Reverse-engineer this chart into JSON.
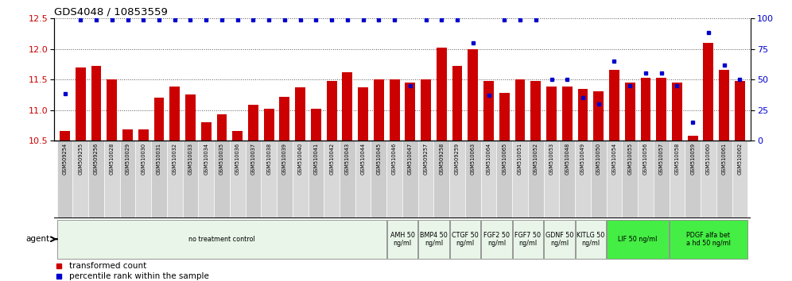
{
  "title": "GDS4048 / 10853559",
  "samples": [
    "GSM509254",
    "GSM509255",
    "GSM509256",
    "GSM510028",
    "GSM510029",
    "GSM510030",
    "GSM510031",
    "GSM510032",
    "GSM510033",
    "GSM510034",
    "GSM510035",
    "GSM510036",
    "GSM510037",
    "GSM510038",
    "GSM510039",
    "GSM510040",
    "GSM510041",
    "GSM510042",
    "GSM510043",
    "GSM510044",
    "GSM510045",
    "GSM510046",
    "GSM510047",
    "GSM509257",
    "GSM509258",
    "GSM509259",
    "GSM510063",
    "GSM510064",
    "GSM510065",
    "GSM510051",
    "GSM510052",
    "GSM510053",
    "GSM510048",
    "GSM510049",
    "GSM510050",
    "GSM510054",
    "GSM510055",
    "GSM510056",
    "GSM510057",
    "GSM510058",
    "GSM510059",
    "GSM510060",
    "GSM510061",
    "GSM510062"
  ],
  "bar_values": [
    10.65,
    11.7,
    11.72,
    11.5,
    10.68,
    10.68,
    11.2,
    11.38,
    11.25,
    10.8,
    10.93,
    10.65,
    11.08,
    11.02,
    11.22,
    11.37,
    11.02,
    11.47,
    11.62,
    11.37,
    11.5,
    11.5,
    11.45,
    11.5,
    12.02,
    11.72,
    12.0,
    11.48,
    11.28,
    11.5,
    11.47,
    11.38,
    11.38,
    11.35,
    11.3,
    11.65,
    11.45,
    11.52,
    11.53,
    11.45,
    10.58,
    12.1,
    11.65,
    11.48
  ],
  "percentile_values": [
    38,
    99,
    99,
    99,
    99,
    99,
    99,
    99,
    99,
    99,
    99,
    99,
    99,
    99,
    99,
    99,
    99,
    99,
    99,
    99,
    99,
    99,
    45,
    99,
    99,
    99,
    80,
    37,
    99,
    99,
    99,
    50,
    50,
    35,
    30,
    65,
    45,
    55,
    55,
    45,
    15,
    88,
    62,
    50
  ],
  "agent_groups": [
    {
      "label": "no treatment control",
      "start": 0,
      "end": 20,
      "color": "#e8f5e8",
      "border": "#888888"
    },
    {
      "label": "AMH 50\nng/ml",
      "start": 21,
      "end": 22,
      "color": "#e8f5e8",
      "border": "#888888"
    },
    {
      "label": "BMP4 50\nng/ml",
      "start": 23,
      "end": 24,
      "color": "#e8f5e8",
      "border": "#888888"
    },
    {
      "label": "CTGF 50\nng/ml",
      "start": 25,
      "end": 26,
      "color": "#e8f5e8",
      "border": "#888888"
    },
    {
      "label": "FGF2 50\nng/ml",
      "start": 27,
      "end": 28,
      "color": "#e8f5e8",
      "border": "#888888"
    },
    {
      "label": "FGF7 50\nng/ml",
      "start": 29,
      "end": 30,
      "color": "#e8f5e8",
      "border": "#888888"
    },
    {
      "label": "GDNF 50\nng/ml",
      "start": 31,
      "end": 32,
      "color": "#e8f5e8",
      "border": "#888888"
    },
    {
      "label": "KITLG 50\nng/ml",
      "start": 33,
      "end": 34,
      "color": "#e8f5e8",
      "border": "#888888"
    },
    {
      "label": "LIF 50 ng/ml",
      "start": 35,
      "end": 38,
      "color": "#44ee44",
      "border": "#888888"
    },
    {
      "label": "PDGF alfa bet\na hd 50 ng/ml",
      "start": 39,
      "end": 43,
      "color": "#44ee44",
      "border": "#888888"
    }
  ],
  "bar_color": "#cc0000",
  "percentile_color": "#0000cc",
  "ylim_left": [
    10.5,
    12.5
  ],
  "ylim_right": [
    0,
    100
  ],
  "yticks_left": [
    10.5,
    11.0,
    11.5,
    12.0,
    12.5
  ],
  "yticks_right": [
    0,
    25,
    50,
    75,
    100
  ],
  "bar_bottom": 10.5,
  "fig_bg": "#ffffff"
}
